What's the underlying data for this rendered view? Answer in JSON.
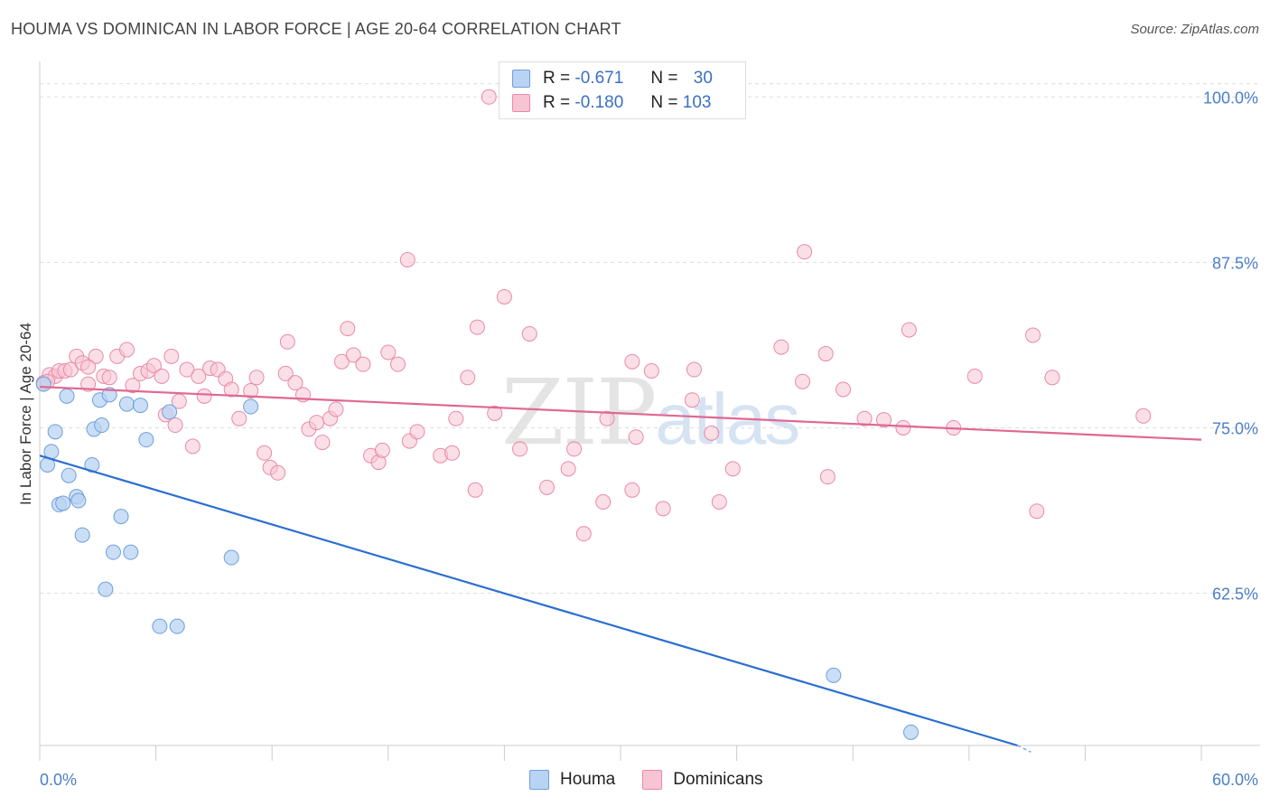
{
  "header": {
    "title": "HOUMA VS DOMINICAN IN LABOR FORCE | AGE 20-64 CORRELATION CHART",
    "source": "Source: ZipAtlas.com"
  },
  "watermark": {
    "zip": "ZIP",
    "atlas": "atlas"
  },
  "legend": {
    "rows": [
      {
        "r_label": "R =",
        "r_value": "-0.671",
        "n_label": "N =",
        "n_value": "30"
      },
      {
        "r_label": "R =",
        "r_value": "-0.180",
        "n_label": "N =",
        "n_value": "103"
      }
    ]
  },
  "bottom_legend": {
    "houma": "Houma",
    "dominicans": "Dominicans"
  },
  "colors": {
    "houma_fill": "#b8d3f3",
    "houma_stroke": "#6f9fd8",
    "houma_line": "#2a6fd0",
    "dom_fill": "#f7c4d4",
    "dom_stroke": "#e88aa8",
    "dom_line": "#e06892",
    "tick_text": "#4a7fc8",
    "grid": "#dddddd"
  },
  "chart_data": {
    "type": "scatter",
    "title": "HOUMA VS DOMINICAN IN LABOR FORCE | AGE 20-64 CORRELATION CHART",
    "xlabel": "",
    "ylabel": "In Labor Force | Age 20-64",
    "xlim": [
      0,
      60
    ],
    "ylim": [
      51,
      102
    ],
    "x_tick_labels": [
      "0.0%",
      "60.0%"
    ],
    "y_ticks": [
      62.5,
      75.0,
      87.5,
      100.0
    ],
    "y_tick_labels": [
      "62.5%",
      "75.0%",
      "87.5%",
      "100.0%"
    ],
    "grid": true,
    "legend_placement": "top-center",
    "series": [
      {
        "name": "Houma",
        "points": [
          [
            0.2,
            78.3
          ],
          [
            0.4,
            72.2
          ],
          [
            0.6,
            73.2
          ],
          [
            0.8,
            74.7
          ],
          [
            1.0,
            69.2
          ],
          [
            1.2,
            69.3
          ],
          [
            1.4,
            77.4
          ],
          [
            1.5,
            71.4
          ],
          [
            1.9,
            69.8
          ],
          [
            2.0,
            69.5
          ],
          [
            2.2,
            66.9
          ],
          [
            2.7,
            72.2
          ],
          [
            2.8,
            74.9
          ],
          [
            3.1,
            77.1
          ],
          [
            3.2,
            75.2
          ],
          [
            3.4,
            62.8
          ],
          [
            3.6,
            77.5
          ],
          [
            3.8,
            65.6
          ],
          [
            4.2,
            68.3
          ],
          [
            4.5,
            76.8
          ],
          [
            4.7,
            65.6
          ],
          [
            5.2,
            76.7
          ],
          [
            5.5,
            74.1
          ],
          [
            6.2,
            60.0
          ],
          [
            6.7,
            76.2
          ],
          [
            7.1,
            60.0
          ],
          [
            9.9,
            65.2
          ],
          [
            10.9,
            76.6
          ],
          [
            41.0,
            56.3
          ],
          [
            45.0,
            52.0
          ]
        ],
        "trend": {
          "x": [
            0,
            50.5
          ],
          "y": [
            72.9,
            51.0
          ],
          "dashed_to": [
            51.2,
            50.5
          ]
        }
      },
      {
        "name": "Dominicans",
        "points": [
          [
            0.2,
            78.4
          ],
          [
            0.5,
            79.0
          ],
          [
            0.8,
            78.9
          ],
          [
            1.0,
            79.3
          ],
          [
            1.3,
            79.3
          ],
          [
            1.6,
            79.4
          ],
          [
            1.9,
            80.4
          ],
          [
            2.2,
            79.9
          ],
          [
            2.5,
            78.3
          ],
          [
            2.9,
            80.4
          ],
          [
            3.3,
            78.9
          ],
          [
            3.6,
            78.8
          ],
          [
            4.0,
            80.4
          ],
          [
            4.5,
            80.9
          ],
          [
            4.8,
            78.2
          ],
          [
            5.2,
            79.1
          ],
          [
            5.6,
            79.3
          ],
          [
            5.9,
            79.7
          ],
          [
            6.3,
            78.9
          ],
          [
            6.5,
            76.0
          ],
          [
            6.8,
            80.4
          ],
          [
            7.0,
            75.2
          ],
          [
            7.2,
            77.0
          ],
          [
            7.6,
            79.4
          ],
          [
            7.9,
            73.6
          ],
          [
            8.2,
            78.9
          ],
          [
            8.5,
            77.4
          ],
          [
            8.8,
            79.5
          ],
          [
            9.2,
            79.4
          ],
          [
            9.6,
            78.7
          ],
          [
            9.9,
            77.9
          ],
          [
            10.3,
            75.7
          ],
          [
            10.9,
            77.8
          ],
          [
            11.2,
            78.8
          ],
          [
            11.6,
            73.1
          ],
          [
            11.9,
            72.0
          ],
          [
            12.3,
            71.6
          ],
          [
            12.7,
            79.1
          ],
          [
            12.8,
            81.5
          ],
          [
            13.2,
            78.4
          ],
          [
            13.6,
            77.5
          ],
          [
            13.9,
            74.9
          ],
          [
            14.3,
            75.4
          ],
          [
            14.6,
            73.9
          ],
          [
            15.0,
            75.7
          ],
          [
            15.3,
            76.4
          ],
          [
            15.6,
            80.0
          ],
          [
            15.9,
            82.5
          ],
          [
            16.2,
            80.5
          ],
          [
            16.7,
            79.8
          ],
          [
            17.1,
            72.9
          ],
          [
            17.5,
            72.4
          ],
          [
            17.7,
            73.3
          ],
          [
            18.0,
            80.7
          ],
          [
            18.5,
            79.8
          ],
          [
            19.1,
            74.0
          ],
          [
            19.0,
            87.7
          ],
          [
            19.5,
            74.7
          ],
          [
            20.7,
            72.9
          ],
          [
            21.3,
            73.1
          ],
          [
            21.5,
            75.7
          ],
          [
            22.1,
            78.8
          ],
          [
            22.5,
            70.3
          ],
          [
            22.6,
            82.6
          ],
          [
            23.2,
            100.0
          ],
          [
            23.5,
            76.1
          ],
          [
            24.0,
            84.9
          ],
          [
            24.8,
            73.4
          ],
          [
            25.3,
            82.1
          ],
          [
            26.2,
            70.5
          ],
          [
            27.3,
            71.9
          ],
          [
            27.6,
            73.4
          ],
          [
            28.1,
            67.0
          ],
          [
            29.1,
            69.4
          ],
          [
            29.3,
            75.7
          ],
          [
            30.6,
            70.3
          ],
          [
            30.8,
            74.3
          ],
          [
            30.6,
            80.0
          ],
          [
            31.6,
            79.3
          ],
          [
            32.2,
            68.9
          ],
          [
            33.7,
            77.1
          ],
          [
            33.8,
            79.4
          ],
          [
            34.7,
            74.6
          ],
          [
            35.1,
            69.4
          ],
          [
            35.8,
            71.9
          ],
          [
            38.3,
            81.1
          ],
          [
            39.4,
            78.5
          ],
          [
            39.5,
            88.3
          ],
          [
            40.6,
            80.6
          ],
          [
            40.7,
            71.3
          ],
          [
            41.5,
            77.9
          ],
          [
            42.6,
            75.7
          ],
          [
            43.6,
            75.6
          ],
          [
            44.6,
            75.0
          ],
          [
            44.9,
            82.4
          ],
          [
            47.2,
            75.0
          ],
          [
            48.3,
            78.9
          ],
          [
            51.3,
            82.0
          ],
          [
            51.5,
            68.7
          ],
          [
            52.3,
            78.8
          ],
          [
            57.0,
            75.9
          ],
          [
            0.4,
            78.5
          ],
          [
            2.5,
            79.6
          ]
        ],
        "trend": {
          "x": [
            0,
            60
          ],
          "y": [
            78.1,
            74.1
          ]
        }
      }
    ]
  }
}
